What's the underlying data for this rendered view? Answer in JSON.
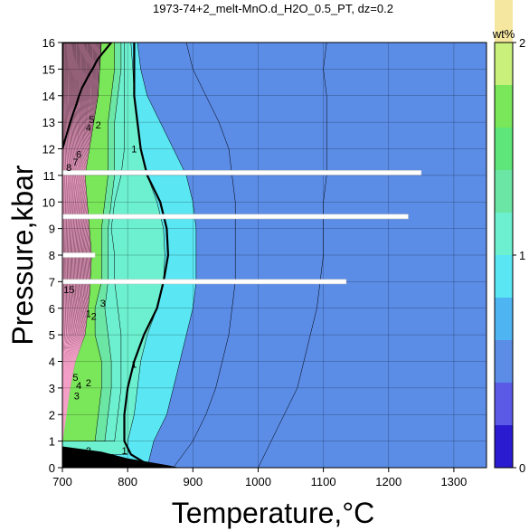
{
  "chart_data": {
    "type": "heatmap",
    "title": "1973-74+2_melt-MnO.d_H2O_0.5_PT, dz=0.2",
    "xlabel": "Temperature,°C",
    "ylabel": "Pressure,kbar",
    "xlim": [
      700,
      1350
    ],
    "ylim": [
      0,
      16
    ],
    "xticks": [
      700,
      800,
      900,
      1000,
      1100,
      1200,
      1300
    ],
    "yticks": [
      0,
      1,
      2,
      3,
      4,
      5,
      6,
      7,
      8,
      9,
      10,
      11,
      12,
      13,
      14,
      15,
      16
    ],
    "grid": true,
    "colorbar": {
      "label": "wt%",
      "range": [
        0,
        2
      ],
      "ticks": [
        0,
        1,
        2
      ],
      "step": 0.2,
      "colors": [
        "#2a1bd0",
        "#5a5ae6",
        "#5b8ce6",
        "#4fb4f2",
        "#5ae6f2",
        "#6cf0cf",
        "#6ce6a4",
        "#5ee67a",
        "#7ae65a",
        "#c8f07a",
        "#f5e6a0",
        "#f2c890",
        "#f5b49e",
        "#f5a0b4",
        "#f5a0c8",
        "#f5b4d7",
        "#f5c8e1",
        "#f8d7eb",
        "#fae6f0",
        "#fdf2f8"
      ]
    },
    "isotherm_boundaries": {
      "levels": [
        0.4,
        0.6,
        0.8,
        1.0,
        1.2,
        1.4,
        1.6
      ],
      "curves": [
        [
          [
            1000,
            0
          ],
          [
            1020,
            1
          ],
          [
            1040,
            2
          ],
          [
            1060,
            3
          ],
          [
            1070,
            4
          ],
          [
            1080,
            5
          ],
          [
            1090,
            6
          ],
          [
            1095,
            7
          ],
          [
            1100,
            8
          ],
          [
            1100,
            9
          ],
          [
            1100,
            10
          ],
          [
            1105,
            11
          ],
          [
            1105,
            12
          ],
          [
            1105,
            13
          ],
          [
            1105,
            14
          ],
          [
            1100,
            15
          ],
          [
            1105,
            16
          ]
        ],
        [
          [
            870,
            0
          ],
          [
            900,
            1
          ],
          [
            920,
            2
          ],
          [
            935,
            3
          ],
          [
            945,
            4
          ],
          [
            955,
            5
          ],
          [
            960,
            6
          ],
          [
            965,
            7
          ],
          [
            965,
            8
          ],
          [
            965,
            9
          ],
          [
            965,
            10
          ],
          [
            960,
            11
          ],
          [
            955,
            12
          ],
          [
            940,
            13
          ],
          [
            920,
            14
          ],
          [
            900,
            15
          ],
          [
            890,
            16
          ]
        ],
        [
          [
            830,
            0
          ],
          [
            840,
            1
          ],
          [
            860,
            2
          ],
          [
            870,
            3
          ],
          [
            880,
            4
          ],
          [
            890,
            5
          ],
          [
            900,
            6
          ],
          [
            905,
            7
          ],
          [
            905,
            8
          ],
          [
            905,
            9
          ],
          [
            900,
            10
          ],
          [
            890,
            11
          ],
          [
            870,
            12
          ],
          [
            850,
            13
          ],
          [
            830,
            14
          ],
          [
            820,
            15
          ],
          [
            815,
            16
          ]
        ],
        [
          [
            800,
            0.5
          ],
          [
            800,
            1
          ],
          [
            810,
            2
          ],
          [
            815,
            3
          ],
          [
            820,
            4
          ],
          [
            830,
            5
          ],
          [
            845,
            6
          ],
          [
            855,
            7
          ],
          [
            857,
            8
          ],
          [
            855,
            9
          ],
          [
            845,
            10
          ],
          [
            830,
            11
          ],
          [
            820,
            12
          ],
          [
            815,
            13
          ],
          [
            810,
            14
          ],
          [
            808,
            15
          ],
          [
            805,
            16
          ]
        ],
        [
          [
            780,
            1
          ],
          [
            785,
            2
          ],
          [
            790,
            3
          ],
          [
            790,
            4
          ],
          [
            790,
            5
          ],
          [
            785,
            6
          ],
          [
            780,
            7
          ],
          [
            780,
            8
          ],
          [
            775,
            9
          ],
          [
            780,
            10
          ],
          [
            790,
            11
          ],
          [
            795,
            12
          ],
          [
            795,
            13
          ],
          [
            795,
            14
          ],
          [
            795,
            15
          ],
          [
            795,
            16
          ]
        ],
        [
          [
            765,
            1
          ],
          [
            770,
            2
          ],
          [
            775,
            3
          ],
          [
            775,
            4
          ],
          [
            770,
            5
          ],
          [
            765,
            6
          ],
          [
            770,
            7
          ],
          [
            770,
            8
          ],
          [
            770,
            9
          ],
          [
            775,
            10
          ],
          [
            780,
            11
          ],
          [
            780,
            12
          ],
          [
            780,
            13
          ],
          [
            785,
            14
          ],
          [
            790,
            15
          ],
          [
            790,
            16
          ]
        ],
        [
          [
            750,
            1
          ],
          [
            755,
            2
          ],
          [
            760,
            3
          ],
          [
            760,
            4
          ],
          [
            750,
            5
          ],
          [
            750,
            6
          ],
          [
            760,
            7
          ],
          [
            760,
            8
          ],
          [
            760,
            9
          ],
          [
            765,
            10
          ],
          [
            770,
            11
          ],
          [
            770,
            12
          ],
          [
            770,
            13
          ],
          [
            775,
            14
          ],
          [
            780,
            15
          ],
          [
            780,
            16
          ]
        ]
      ]
    },
    "solidus_curve": [
      [
        825,
        0.2
      ],
      [
        805,
        0.5
      ],
      [
        795,
        1
      ],
      [
        795,
        2
      ],
      [
        800,
        3
      ],
      [
        810,
        4
      ],
      [
        825,
        5
      ],
      [
        845,
        6
      ],
      [
        855,
        7
      ],
      [
        862,
        8
      ],
      [
        860,
        9
      ],
      [
        850,
        10
      ],
      [
        830,
        11
      ],
      [
        820,
        12
      ],
      [
        815,
        13
      ],
      [
        810,
        14
      ],
      [
        810,
        15
      ],
      [
        810,
        16
      ]
    ],
    "contour_labels": [
      {
        "text": "1",
        "T": 810,
        "P": 12.0
      },
      {
        "text": "1",
        "T": 810,
        "P": 3.9
      },
      {
        "text": "1",
        "T": 795,
        "P": 0.65
      },
      {
        "text": "2",
        "T": 740,
        "P": 0.65
      },
      {
        "text": "1",
        "T": 715,
        "P": 0.15
      },
      {
        "text": "5",
        "T": 745,
        "P": 13.1
      },
      {
        "text": "4",
        "T": 740,
        "P": 12.8
      },
      {
        "text": "2",
        "T": 755,
        "P": 12.9
      },
      {
        "text": "6",
        "T": 725,
        "P": 11.8
      },
      {
        "text": "7",
        "T": 720,
        "P": 11.5
      },
      {
        "text": "8",
        "T": 710,
        "P": 11.3
      },
      {
        "text": "15",
        "T": 710,
        "P": 6.7
      },
      {
        "text": "3",
        "T": 762,
        "P": 6.2
      },
      {
        "text": "1",
        "T": 740,
        "P": 5.8
      },
      {
        "text": "2",
        "T": 748,
        "P": 5.7
      },
      {
        "text": "5",
        "T": 720,
        "P": 3.4
      },
      {
        "text": "4",
        "T": 725,
        "P": 3.1
      },
      {
        "text": "3",
        "T": 722,
        "P": 2.7
      },
      {
        "text": "2",
        "T": 740,
        "P": 3.2
      }
    ],
    "white_bars": [
      {
        "P": 11.1,
        "T_from": 700,
        "T_to": 1250
      },
      {
        "P": 9.45,
        "T_from": 700,
        "T_to": 1230
      },
      {
        "P": 8.0,
        "T_from": 700,
        "T_to": 750
      },
      {
        "P": 7.0,
        "T_from": 700,
        "T_to": 1135
      }
    ]
  }
}
